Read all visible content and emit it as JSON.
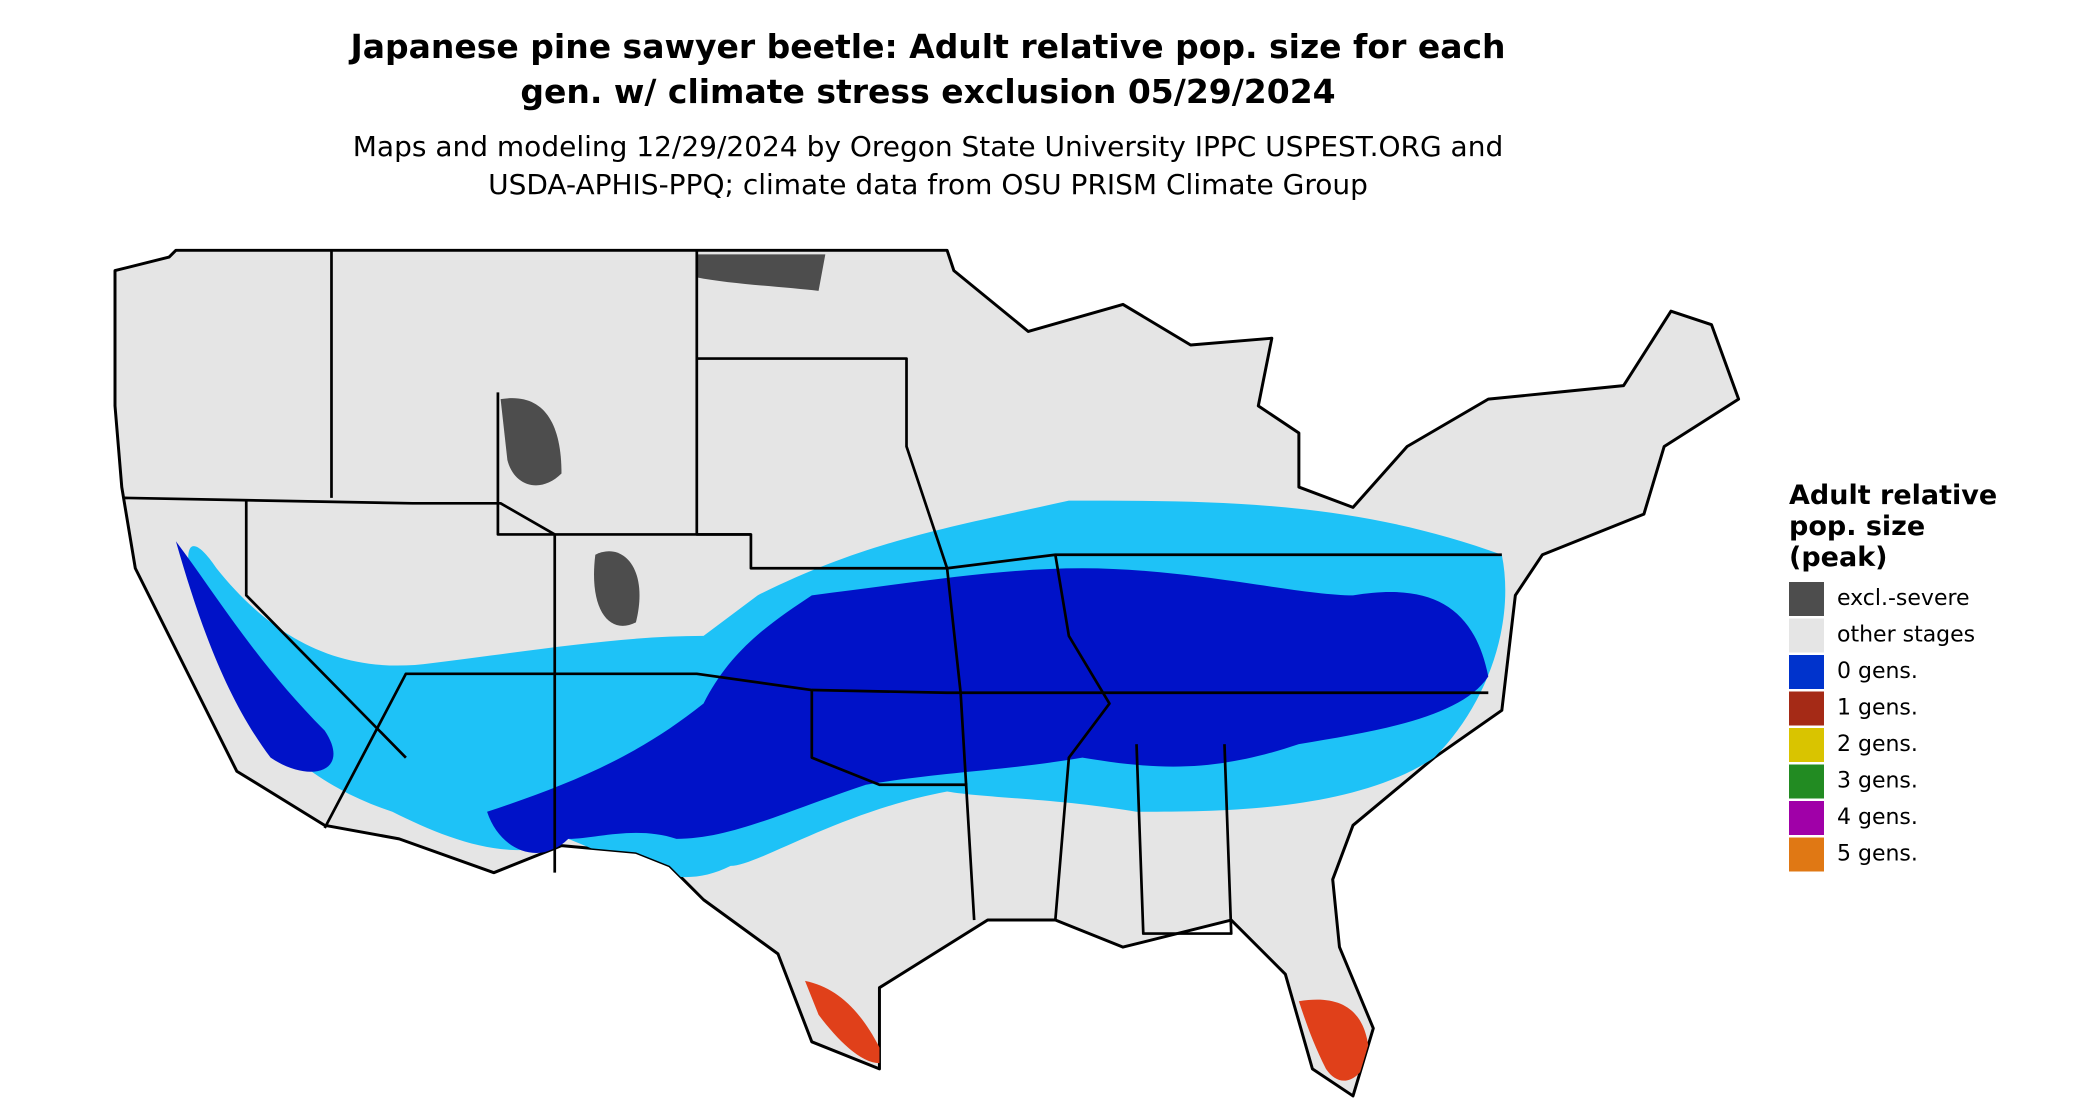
{
  "header": {
    "title": [
      "Japanese pine sawyer beetle: Adult relative pop. size for each",
      "gen. w/ climate stress exclusion 05/29/2024"
    ],
    "subtitle": [
      "Maps and modeling 12/29/2024 by Oregon State University IPPC USPEST.ORG and",
      "USDA-APHIS-PPQ; climate data from OSU PRISM Climate Group"
    ]
  },
  "legend": {
    "title": [
      "Adult relative",
      "pop. size",
      "(peak)"
    ],
    "items": [
      {
        "label": "excl.-severe",
        "color": "#4d4d4d"
      },
      {
        "label": "other stages",
        "color": "#e5e5e5"
      },
      {
        "label": "0 gens.",
        "color": "#0033cc"
      },
      {
        "label": "1 gens.",
        "color": "#a52a16"
      },
      {
        "label": "2 gens.",
        "color": "#d9c400"
      },
      {
        "label": "3 gens.",
        "color": "#228b22"
      },
      {
        "label": "4 gens.",
        "color": "#a000a8"
      },
      {
        "label": "5 gens.",
        "color": "#e07814"
      }
    ]
  }
}
